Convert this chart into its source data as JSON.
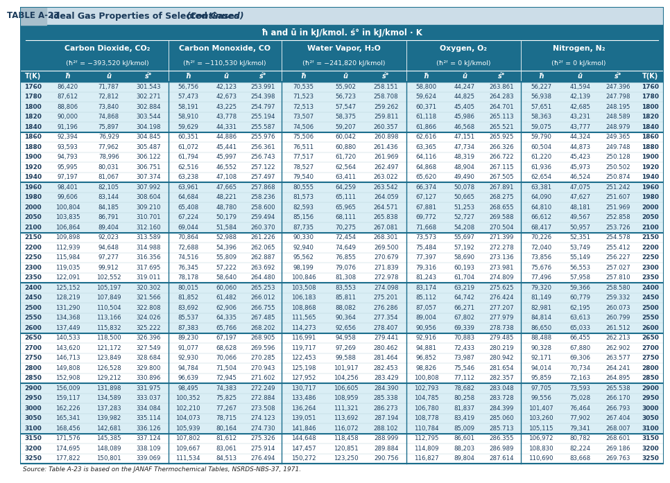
{
  "title_left": "TABLE A-23",
  "title_right_normal": "Ideal Gas Properties of Selected Gases ",
  "title_right_italic": "(Continued)",
  "subtitle": "ħ and ū in kJ/kmol. ś° in kJ/kmol · K",
  "col_groups": [
    {
      "name": "Carbon Dioxide, CO₂",
      "sub": "(ħ²ᶠ = −393,520 kJ/kmol)"
    },
    {
      "name": "Carbon Monoxide, CO",
      "sub": "(ħ²ᶠ = −110,530 kJ/kmol)"
    },
    {
      "name": "Water Vapor, H₂O",
      "sub": "(ħ²ᶠ = −241,820 kJ/kmol)"
    },
    {
      "name": "Oxygen, O₂",
      "sub": "(ħ²ᶠ = 0 kJ/kmol)"
    },
    {
      "name": "Nitrogen, N₂",
      "sub": "(ħ²ᶠ = 0 kJ/kmol)"
    }
  ],
  "title_bg": "#ccdde8",
  "header_bg": "#1b6d8c",
  "header_text": "#ffffff",
  "source_note": "Source: Table A-23 is based on the JANAF Thermochemical Tables, NSRDS-NBS-37, 1971.",
  "rows": [
    [
      1760,
      86420,
      71787,
      301.543,
      56756,
      42123,
      253.991,
      70535,
      55902,
      258.151,
      58800,
      44247,
      263.861,
      56227,
      41594,
      247.396,
      1760
    ],
    [
      1780,
      87612,
      72812,
      302.271,
      57473,
      42673,
      254.398,
      71523,
      56723,
      258.708,
      59624,
      44825,
      264.283,
      56938,
      42139,
      247.798,
      1780
    ],
    [
      1800,
      88806,
      73840,
      302.884,
      58191,
      43225,
      254.797,
      72513,
      57547,
      259.262,
      60371,
      45405,
      264.701,
      57651,
      42685,
      248.195,
      1800
    ],
    [
      1820,
      90000,
      74868,
      303.544,
      58910,
      43778,
      255.194,
      73507,
      58375,
      259.811,
      61118,
      45986,
      265.113,
      58363,
      43231,
      248.589,
      1820
    ],
    [
      1840,
      91196,
      75897,
      304.198,
      59629,
      44331,
      255.587,
      74506,
      59207,
      260.357,
      61866,
      46568,
      265.521,
      59075,
      43777,
      248.979,
      1840
    ],
    [
      1860,
      92394,
      76929,
      304.845,
      60351,
      44886,
      255.976,
      75506,
      60042,
      260.898,
      62616,
      47151,
      265.925,
      59790,
      44324,
      249.365,
      1860
    ],
    [
      1880,
      93593,
      77962,
      305.487,
      61072,
      45441,
      256.361,
      76511,
      60880,
      261.436,
      63365,
      47734,
      266.326,
      60504,
      44873,
      249.748,
      1880
    ],
    [
      1900,
      94793,
      78996,
      306.122,
      61794,
      45997,
      256.743,
      77517,
      61720,
      261.969,
      64116,
      48319,
      266.722,
      61220,
      45423,
      250.128,
      1900
    ],
    [
      1920,
      95995,
      80031,
      306.751,
      62516,
      46552,
      257.122,
      78527,
      62564,
      262.497,
      64868,
      48904,
      267.115,
      61936,
      45973,
      250.502,
      1920
    ],
    [
      1940,
      97197,
      81067,
      307.374,
      63238,
      47108,
      257.497,
      79540,
      63411,
      263.022,
      65620,
      49490,
      267.505,
      62654,
      46524,
      250.874,
      1940
    ],
    [
      1960,
      98401,
      82105,
      307.992,
      63961,
      47665,
      257.868,
      80555,
      64259,
      263.542,
      66374,
      50078,
      267.891,
      63381,
      47075,
      251.242,
      1960
    ],
    [
      1980,
      99606,
      83144,
      308.604,
      64684,
      48221,
      258.236,
      81573,
      65111,
      264.059,
      67127,
      50665,
      268.275,
      64090,
      47627,
      251.607,
      1980
    ],
    [
      2000,
      100804,
      84185,
      309.21,
      65408,
      48780,
      258.6,
      82593,
      65965,
      264.571,
      67881,
      51253,
      268.655,
      64810,
      48181,
      251.969,
      2000
    ],
    [
      2050,
      103835,
      86791,
      310.701,
      67224,
      50179,
      259.494,
      85156,
      68111,
      265.838,
      69772,
      52727,
      269.588,
      66612,
      49567,
      252.858,
      2050
    ],
    [
      2100,
      106864,
      89404,
      312.16,
      69044,
      51584,
      260.37,
      87735,
      70275,
      267.081,
      71668,
      54208,
      270.504,
      68417,
      50957,
      253.726,
      2100
    ],
    [
      2150,
      109898,
      92023,
      313.589,
      70864,
      52988,
      261.226,
      90330,
      72454,
      268.301,
      73573,
      55697,
      271.399,
      70226,
      52351,
      254.578,
      2150
    ],
    [
      2200,
      112939,
      94648,
      314.988,
      72688,
      54396,
      262.065,
      92940,
      74649,
      269.5,
      75484,
      57192,
      272.278,
      72040,
      53749,
      255.412,
      2200
    ],
    [
      2250,
      115984,
      97277,
      316.356,
      74516,
      55809,
      262.887,
      95562,
      76855,
      270.679,
      77397,
      58690,
      273.136,
      73856,
      55149,
      256.227,
      2250
    ],
    [
      2300,
      119035,
      99912,
      317.695,
      76345,
      57222,
      263.692,
      98199,
      79076,
      271.839,
      79316,
      60193,
      273.981,
      75676,
      56553,
      257.027,
      2300
    ],
    [
      2350,
      122091,
      102552,
      319.011,
      78178,
      58640,
      264.48,
      100846,
      81308,
      272.978,
      81243,
      61704,
      274.809,
      77496,
      57958,
      257.81,
      2350
    ],
    [
      2400,
      125152,
      105197,
      320.302,
      80015,
      60060,
      265.253,
      103508,
      83553,
      274.098,
      83174,
      63219,
      275.625,
      79320,
      59366,
      258.58,
      2400
    ],
    [
      2450,
      128219,
      107849,
      321.566,
      81852,
      61482,
      266.012,
      106183,
      85811,
      275.201,
      85112,
      64742,
      276.424,
      81149,
      60779,
      259.332,
      2450
    ],
    [
      2500,
      131290,
      110504,
      322.808,
      83692,
      62906,
      266.755,
      108868,
      88082,
      276.286,
      87057,
      66271,
      277.207,
      82981,
      62195,
      260.073,
      2500
    ],
    [
      2550,
      134368,
      113166,
      324.026,
      85537,
      64335,
      267.485,
      111565,
      90364,
      277.354,
      89004,
      67802,
      277.979,
      84814,
      63613,
      260.799,
      2550
    ],
    [
      2600,
      137449,
      115832,
      325.222,
      87383,
      65766,
      268.202,
      114273,
      92656,
      278.407,
      90956,
      69339,
      278.738,
      86650,
      65033,
      261.512,
      2600
    ],
    [
      2650,
      140533,
      118500,
      326.396,
      89230,
      67197,
      268.905,
      116991,
      94958,
      279.441,
      92916,
      70883,
      279.485,
      88488,
      66455,
      262.213,
      2650
    ],
    [
      2700,
      143620,
      121172,
      327.549,
      91077,
      68628,
      269.596,
      119717,
      97269,
      280.462,
      94881,
      72433,
      280.219,
      90328,
      67880,
      262.902,
      2700
    ],
    [
      2750,
      146713,
      123849,
      328.684,
      92930,
      70066,
      270.285,
      122453,
      99588,
      281.464,
      96852,
      73987,
      280.942,
      92171,
      69306,
      263.577,
      2750
    ],
    [
      2800,
      149808,
      126528,
      329.8,
      94784,
      71504,
      270.943,
      125198,
      101917,
      282.453,
      98826,
      75546,
      281.654,
      94014,
      70734,
      264.241,
      2800
    ],
    [
      2850,
      152908,
      129212,
      330.896,
      96639,
      72945,
      271.602,
      127952,
      104256,
      283.429,
      100808,
      77112,
      282.357,
      95859,
      72163,
      264.895,
      2850
    ],
    [
      2900,
      156009,
      131898,
      331.975,
      98495,
      74383,
      272.249,
      130717,
      106605,
      284.39,
      102793,
      78682,
      283.048,
      97705,
      73593,
      265.538,
      2900
    ],
    [
      2950,
      159117,
      134589,
      333.037,
      100352,
      75825,
      272.884,
      133486,
      108959,
      285.338,
      104785,
      80258,
      283.728,
      99556,
      75028,
      266.17,
      2950
    ],
    [
      3000,
      162226,
      137283,
      334.084,
      102210,
      77267,
      273.508,
      136264,
      111321,
      286.273,
      106780,
      81837,
      284.399,
      101407,
      76464,
      266.793,
      3000
    ],
    [
      3050,
      165341,
      139982,
      335.114,
      104073,
      78715,
      274.123,
      139051,
      113692,
      287.194,
      108778,
      83419,
      285.06,
      103260,
      77902,
      267.404,
      3050
    ],
    [
      3100,
      168456,
      142681,
      336.126,
      105939,
      80164,
      274.73,
      141846,
      116072,
      288.102,
      110784,
      85009,
      285.713,
      105115,
      79341,
      268.007,
      3100
    ],
    [
      3150,
      171576,
      145385,
      337.124,
      107802,
      81612,
      275.326,
      144648,
      118458,
      288.999,
      112795,
      86601,
      286.355,
      106972,
      80782,
      268.601,
      3150
    ],
    [
      3200,
      174695,
      148089,
      338.109,
      109667,
      83061,
      275.914,
      147457,
      120851,
      289.884,
      114809,
      88203,
      286.989,
      108830,
      82224,
      269.186,
      3200
    ],
    [
      3250,
      177822,
      150801,
      339.069,
      111534,
      84513,
      276.494,
      150272,
      123250,
      290.756,
      116827,
      89804,
      287.614,
      110690,
      83668,
      269.763,
      3250
    ]
  ],
  "blocks": [
    5,
    5,
    5,
    5,
    5,
    5,
    5,
    3
  ]
}
